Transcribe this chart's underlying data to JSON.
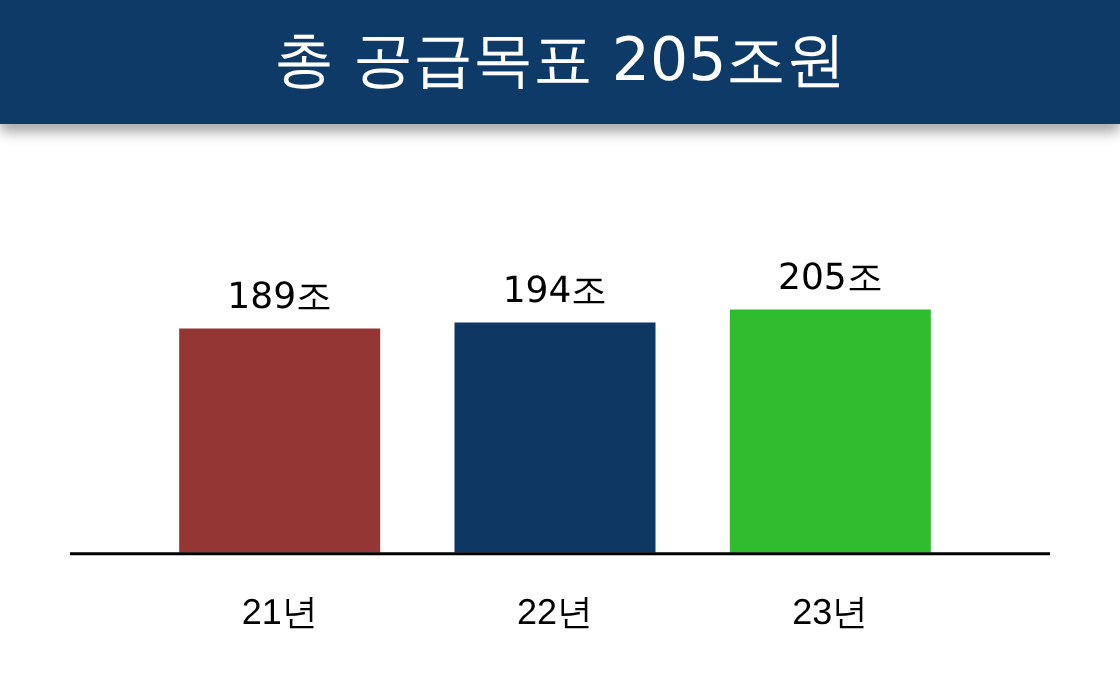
{
  "chart_data": {
    "type": "bar",
    "title": "총 공급목표 205조원",
    "categories": [
      "21년",
      "22년",
      "23년"
    ],
    "values": [
      189,
      194,
      205
    ],
    "colors": [
      "#943634",
      "#0e3763",
      "#2fbd2f"
    ],
    "value_labels": [
      "189조",
      "194조",
      "205조"
    ]
  }
}
